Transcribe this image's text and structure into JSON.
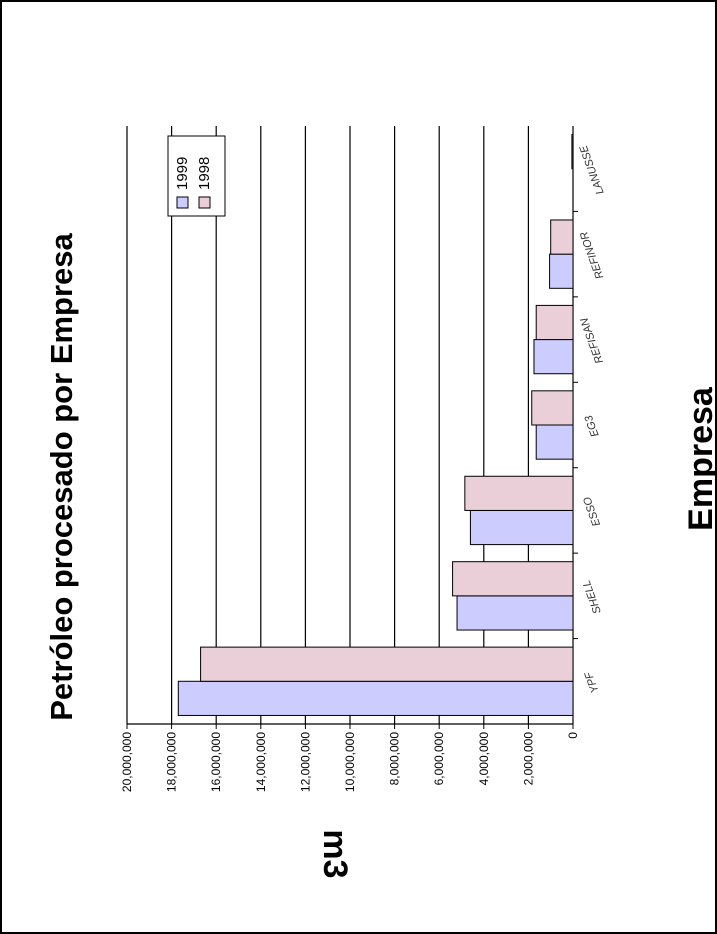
{
  "chart_data": {
    "type": "bar",
    "title": "Petróleo procesado por Empresa",
    "xlabel": "Empresa",
    "ylabel": "m3",
    "categories": [
      "YPF",
      "SHELL",
      "ESSO",
      "EG3",
      "REFISAN",
      "REFINOR",
      "LANUSSE"
    ],
    "series": [
      {
        "name": "1999",
        "values": [
          17700000,
          5200000,
          4600000,
          1650000,
          1750000,
          1050000,
          0
        ],
        "color": "#ccccff"
      },
      {
        "name": "1998",
        "values": [
          16700000,
          5400000,
          4850000,
          1850000,
          1650000,
          1000000,
          50000
        ],
        "color": "#eacfd8"
      }
    ],
    "ylim": [
      0,
      20000000
    ],
    "yticks": [
      "0",
      "2,000,000",
      "4,000,000",
      "6,000,000",
      "8,000,000",
      "10,000,000",
      "12,000,000",
      "14,000,000",
      "16,000,000",
      "18,000,000",
      "20,000,000"
    ],
    "grid": true,
    "legend": "top-right",
    "orientation": "rotated-90"
  }
}
